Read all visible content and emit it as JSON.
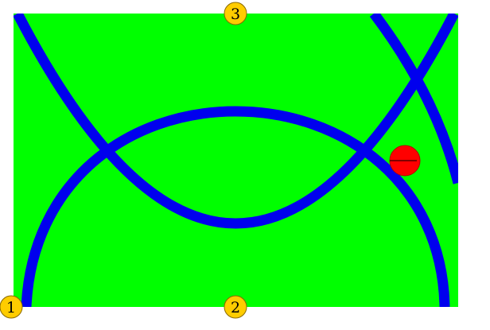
{
  "colors": {
    "background": "#ffffff",
    "field": "#00ff00",
    "arc_stroke": "#0000ee",
    "ball_fill": "#ff0000",
    "ball_outline": "#b80000",
    "marker_fill": "#ffcc00",
    "marker_outline": "#8a6a00",
    "marker_text": "#000000"
  },
  "markers": [
    {
      "label": "1",
      "icon": "numbered-circle-marker"
    },
    {
      "label": "2",
      "icon": "numbered-circle-marker"
    },
    {
      "label": "3",
      "icon": "numbered-circle-marker"
    }
  ],
  "ball": {
    "icon": "red-ball"
  }
}
